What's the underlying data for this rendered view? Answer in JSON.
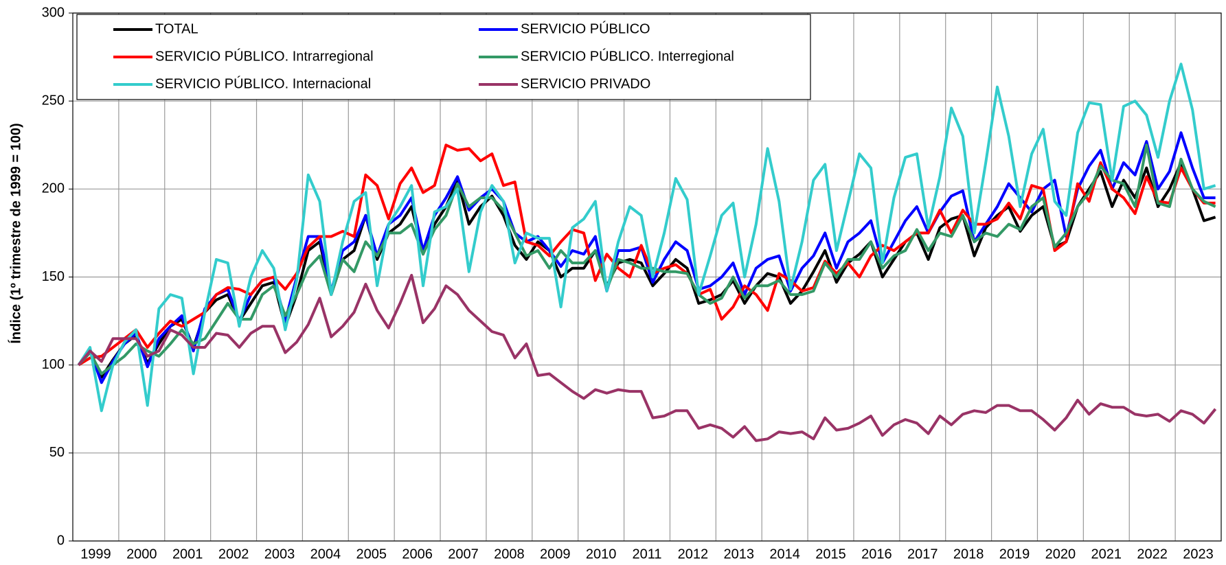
{
  "chart_data": {
    "type": "line",
    "y_label": "Índice (1º trimestre de 1999 = 100)",
    "categories": [
      "1999",
      null,
      null,
      null,
      "2000",
      null,
      null,
      null,
      "2001",
      null,
      null,
      null,
      "2002",
      null,
      null,
      null,
      "2003",
      null,
      null,
      null,
      "2004",
      null,
      null,
      null,
      "2005",
      null,
      null,
      null,
      "2006",
      null,
      null,
      null,
      "2007",
      null,
      null,
      null,
      "2008",
      null,
      null,
      null,
      "2009",
      null,
      null,
      null,
      "2010",
      null,
      null,
      null,
      "2011",
      null,
      null,
      null,
      "2012",
      null,
      null,
      null,
      "2013",
      null,
      null,
      null,
      "2014",
      null,
      null,
      null,
      "2015",
      null,
      null,
      null,
      "2016",
      null,
      null,
      null,
      "2017",
      null,
      null,
      null,
      "2018",
      null,
      null,
      null,
      "2019",
      null,
      null,
      null,
      "2020",
      null,
      null,
      null,
      "2021",
      null,
      null,
      null,
      "2022",
      null,
      null,
      null,
      "2023",
      null,
      null,
      null
    ],
    "ylim": [
      0,
      300
    ],
    "yticks": [
      0,
      50,
      100,
      150,
      200,
      250,
      300
    ],
    "grid": true,
    "legend": "upper left",
    "series": [
      {
        "name": "TOTAL",
        "color": "#000000",
        "values": [
          100,
          108,
          93,
          103,
          112,
          117,
          101,
          112,
          122,
          126,
          110,
          130,
          137,
          140,
          125,
          135,
          145,
          147,
          122,
          140,
          165,
          170,
          140,
          160,
          165,
          185,
          160,
          175,
          180,
          190,
          163,
          180,
          190,
          205,
          180,
          190,
          196,
          185,
          168,
          160,
          170,
          165,
          150,
          155,
          155,
          165,
          145,
          158,
          160,
          158,
          145,
          152,
          160,
          155,
          135,
          137,
          140,
          148,
          135,
          145,
          152,
          150,
          135,
          142,
          153,
          165,
          147,
          158,
          163,
          170,
          150,
          160,
          170,
          175,
          160,
          178,
          183,
          185,
          162,
          178,
          185,
          190,
          176,
          185,
          190,
          167,
          170,
          190,
          200,
          210,
          190,
          205,
          195,
          212,
          190,
          200,
          215,
          200,
          182,
          184
        ]
      },
      {
        "name": "SERVICIO PÚBLICO",
        "color": "#0000ff",
        "values": [
          100,
          108,
          90,
          102,
          112,
          118,
          99,
          115,
          122,
          128,
          108,
          132,
          140,
          143,
          125,
          140,
          148,
          150,
          125,
          150,
          173,
          173,
          142,
          165,
          170,
          185,
          162,
          180,
          185,
          195,
          165,
          185,
          195,
          207,
          188,
          195,
          200,
          193,
          175,
          170,
          173,
          165,
          156,
          165,
          163,
          173,
          142,
          165,
          165,
          167,
          147,
          160,
          170,
          165,
          143,
          145,
          150,
          158,
          140,
          155,
          160,
          162,
          142,
          155,
          162,
          175,
          155,
          170,
          175,
          182,
          158,
          170,
          182,
          190,
          175,
          187,
          196,
          199,
          170,
          180,
          190,
          203,
          195,
          187,
          200,
          205,
          173,
          200,
          213,
          222,
          200,
          215,
          208,
          227,
          200,
          210,
          232,
          212,
          195,
          195
        ]
      },
      {
        "name": "SERVICIO PÚBLICO. Intrarregional",
        "color": "#ff0000",
        "values": [
          100,
          104,
          105,
          110,
          115,
          120,
          110,
          118,
          125,
          122,
          126,
          130,
          140,
          144,
          143,
          140,
          148,
          150,
          143,
          152,
          167,
          173,
          173,
          176,
          173,
          208,
          202,
          183,
          203,
          212,
          198,
          202,
          225,
          222,
          223,
          216,
          220,
          202,
          204,
          170,
          168,
          162,
          170,
          177,
          175,
          148,
          163,
          155,
          150,
          168,
          152,
          155,
          157,
          152,
          140,
          143,
          126,
          133,
          145,
          140,
          131,
          152,
          148,
          142,
          144,
          159,
          152,
          158,
          150,
          162,
          168,
          165,
          170,
          175,
          175,
          188,
          175,
          188,
          180,
          180,
          183,
          192,
          183,
          202,
          200,
          165,
          170,
          203,
          193,
          215,
          200,
          195,
          186,
          207,
          193,
          192,
          212,
          200,
          192,
          192
        ]
      },
      {
        "name": "SERVICIO PÚBLICO. Interregional",
        "color": "#339966",
        "values": [
          100,
          107,
          95,
          100,
          105,
          112,
          108,
          105,
          112,
          120,
          112,
          115,
          125,
          135,
          126,
          126,
          140,
          145,
          128,
          140,
          155,
          162,
          140,
          160,
          153,
          170,
          162,
          175,
          175,
          180,
          163,
          177,
          185,
          203,
          190,
          195,
          195,
          188,
          175,
          162,
          165,
          155,
          165,
          158,
          158,
          165,
          143,
          160,
          158,
          155,
          155,
          153,
          153,
          152,
          140,
          135,
          138,
          150,
          138,
          145,
          145,
          148,
          140,
          140,
          142,
          158,
          150,
          160,
          160,
          170,
          155,
          162,
          165,
          177,
          165,
          175,
          173,
          185,
          170,
          175,
          173,
          180,
          177,
          190,
          195,
          167,
          175,
          190,
          198,
          213,
          205,
          203,
          190,
          225,
          192,
          190,
          217,
          200,
          193,
          190
        ]
      },
      {
        "name": "SERVICIO PÚBLICO. Internacional",
        "color": "#33cccc",
        "values": [
          100,
          110,
          74,
          100,
          113,
          120,
          77,
          132,
          140,
          138,
          95,
          130,
          160,
          158,
          122,
          150,
          165,
          155,
          120,
          148,
          208,
          193,
          140,
          170,
          193,
          198,
          145,
          180,
          190,
          202,
          145,
          187,
          190,
          200,
          153,
          187,
          202,
          193,
          158,
          175,
          172,
          172,
          133,
          178,
          183,
          193,
          142,
          170,
          190,
          185,
          150,
          175,
          206,
          194,
          140,
          162,
          185,
          192,
          150,
          180,
          223,
          193,
          143,
          170,
          205,
          214,
          165,
          192,
          220,
          212,
          158,
          195,
          218,
          220,
          178,
          207,
          246,
          230,
          175,
          215,
          258,
          230,
          190,
          220,
          234,
          193,
          185,
          232,
          249,
          248,
          205,
          247,
          250,
          242,
          218,
          250,
          271,
          245,
          200,
          202
        ]
      },
      {
        "name": "SERVICIO PRIVADO",
        "color": "#993366",
        "values": [
          100,
          108,
          102,
          115,
          115,
          115,
          105,
          108,
          120,
          117,
          110,
          110,
          118,
          117,
          110,
          118,
          122,
          122,
          107,
          113,
          123,
          138,
          116,
          122,
          130,
          146,
          131,
          121,
          135,
          151,
          124,
          132,
          145,
          140,
          131,
          125,
          119,
          117,
          104,
          112,
          94,
          95,
          90,
          85,
          81,
          86,
          84,
          86,
          85,
          85,
          70,
          71,
          74,
          74,
          64,
          66,
          64,
          59,
          65,
          57,
          58,
          62,
          61,
          62,
          58,
          70,
          63,
          64,
          67,
          71,
          60,
          66,
          69,
          67,
          61,
          71,
          66,
          72,
          74,
          73,
          77,
          77,
          74,
          74,
          69,
          63,
          70,
          80,
          72,
          78,
          76,
          76,
          72,
          71,
          72,
          68,
          74,
          72,
          67,
          75
        ]
      }
    ]
  }
}
